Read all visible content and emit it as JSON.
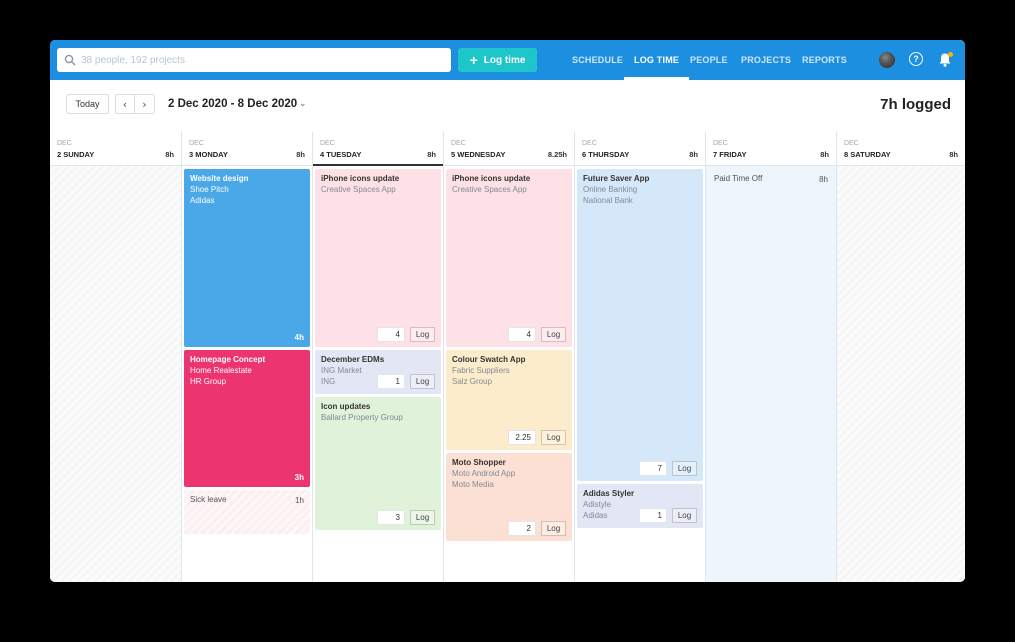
{
  "search": {
    "placeholder": "38 people, 192 projects"
  },
  "log_time_button": "Log time",
  "nav": [
    "SCHEDULE",
    "LOG TIME",
    "PEOPLE",
    "PROJECTS",
    "REPORTS"
  ],
  "nav_active": "LOG TIME",
  "toolbar": {
    "today": "Today",
    "prev": "‹",
    "next": "›",
    "date_range": "2 Dec 2020 - 8 Dec 2020",
    "caret": "⌄",
    "logged": "7h logged"
  },
  "days": [
    {
      "month": "DEC",
      "day": "2 SUNDAY",
      "hours": "8h"
    },
    {
      "month": "DEC",
      "day": "3 MONDAY",
      "hours": "8h"
    },
    {
      "month": "DEC",
      "day": "4 TUESDAY",
      "hours": "8h"
    },
    {
      "month": "DEC",
      "day": "5 WEDNESDAY",
      "hours": "8.25h"
    },
    {
      "month": "DEC",
      "day": "6 THURSDAY",
      "hours": "8h"
    },
    {
      "month": "DEC",
      "day": "7 FRIDAY",
      "hours": "8h"
    },
    {
      "month": "DEC",
      "day": "8 SATURDAY",
      "hours": "8h"
    }
  ],
  "log_label": "Log",
  "cards": {
    "mon1": {
      "title": "Website design",
      "line1": "Shoe Pitch",
      "line2": "Adidas",
      "hours": "4h",
      "color": "#4aa8e8"
    },
    "mon2": {
      "title": "Homepage Concept",
      "line1": "Home Realestate",
      "line2": "HR Group",
      "hours": "3h",
      "color": "#ec3470"
    },
    "mon3": {
      "title": "Sick leave",
      "hours": "1h"
    },
    "tue1": {
      "title": "iPhone icons update",
      "line1": "Creative Spaces App",
      "value": "4",
      "color": "#fde1e6"
    },
    "tue2": {
      "title": "December EDMs",
      "line1": "ING Market",
      "line2": "ING",
      "value": "1",
      "color": "#e3e6f4"
    },
    "tue3": {
      "title": "Icon updates",
      "line1": "Ballard Property Group",
      "value": "3",
      "color": "#e0f2da"
    },
    "wed1": {
      "title": "iPhone icons update",
      "line1": "Creative Spaces App",
      "value": "4",
      "color": "#fde1e6"
    },
    "wed2": {
      "title": "Colour Swatch App",
      "line1": "Fabric Suppliers",
      "line2": "Salz Group",
      "value": "2.25",
      "color": "#fdeccb"
    },
    "wed3": {
      "title": "Moto Shopper",
      "line1": "Moto Android App",
      "line2": "Moto Media",
      "value": "2",
      "color": "#fde0d4"
    },
    "thu1": {
      "title": "Future Saver App",
      "line1": "Online Banking",
      "line2": "National Bank",
      "value": "7",
      "color": "#d5e8fa"
    },
    "thu2": {
      "title": "Adidas Styler",
      "line1": "Adistyle",
      "line2": "Adidas",
      "value": "1",
      "color": "#e3e6f4"
    },
    "fri1": {
      "title": "Paid Time Off",
      "hours": "8h"
    }
  }
}
